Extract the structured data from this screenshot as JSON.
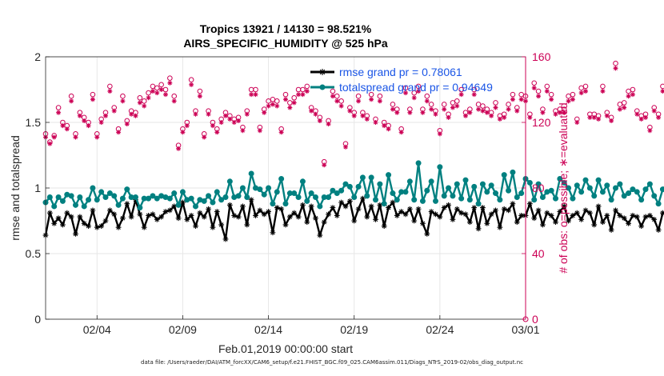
{
  "chart_data": {
    "type": "line",
    "title": "Tropics 13921 / 14130 = 98.521%",
    "subtitle": "AIRS_SPECIFIC_HUMIDITY @ 525 hPa",
    "xlabel": "Feb.01,2019 00:00:00 start",
    "ylabel": "rmse and totalspread",
    "y2label": "# of obs: o=possible; ∗=evaluated",
    "xlim": [
      0,
      28
    ],
    "ylim": [
      0,
      2
    ],
    "y2lim": [
      0,
      160
    ],
    "x_ticks": [
      {
        "value": 3,
        "label": "02/04"
      },
      {
        "value": 8,
        "label": "02/09"
      },
      {
        "value": 13,
        "label": "02/14"
      },
      {
        "value": 18,
        "label": "02/19"
      },
      {
        "value": 23,
        "label": "02/24"
      },
      {
        "value": 28,
        "label": "03/01"
      }
    ],
    "y_ticks": [
      {
        "value": 0,
        "label": "0"
      },
      {
        "value": 0.5,
        "label": "0.5"
      },
      {
        "value": 1,
        "label": "1"
      },
      {
        "value": 1.5,
        "label": "1.5"
      },
      {
        "value": 2,
        "label": "2"
      }
    ],
    "y2_ticks": [
      {
        "value": 0,
        "label": "0"
      },
      {
        "value": 40,
        "label": "40"
      },
      {
        "value": 80,
        "label": "80"
      },
      {
        "value": 120,
        "label": "120"
      },
      {
        "value": 160,
        "label": "160"
      }
    ],
    "legend": [
      {
        "label": "rmse grand pr = 0.78061",
        "series": "rmse"
      },
      {
        "label": "totalspread grand pr = 0.94649",
        "series": "totalspread"
      }
    ],
    "legend_position": "top-right",
    "x_step": 0.25,
    "series": [
      {
        "name": "rmse",
        "axis": "left",
        "color": "#000000",
        "values": [
          0.64,
          0.81,
          0.73,
          0.77,
          0.72,
          0.81,
          0.78,
          0.65,
          0.78,
          0.73,
          0.71,
          0.83,
          0.7,
          0.71,
          0.75,
          0.83,
          0.8,
          0.7,
          0.77,
          0.88,
          0.78,
          0.91,
          0.8,
          0.7,
          0.79,
          0.8,
          0.76,
          0.78,
          0.82,
          0.83,
          0.86,
          0.77,
          0.89,
          0.76,
          0.79,
          0.71,
          0.81,
          0.78,
          0.84,
          0.7,
          0.82,
          0.72,
          0.61,
          0.87,
          0.79,
          0.78,
          0.86,
          0.72,
          0.91,
          0.79,
          0.83,
          0.8,
          0.82,
          0.66,
          0.85,
          0.84,
          0.72,
          0.78,
          0.81,
          0.78,
          0.87,
          0.74,
          0.86,
          0.77,
          0.64,
          0.74,
          0.8,
          0.85,
          0.79,
          0.89,
          0.86,
          0.9,
          0.75,
          0.84,
          0.92,
          0.78,
          0.86,
          0.76,
          0.87,
          0.71,
          0.85,
          0.89,
          0.79,
          0.82,
          0.8,
          0.84,
          0.75,
          0.84,
          0.73,
          0.65,
          0.82,
          0.8,
          0.78,
          0.85,
          0.87,
          0.76,
          0.84,
          0.81,
          0.8,
          0.74,
          0.85,
          0.69,
          0.85,
          0.73,
          0.8,
          0.83,
          0.7,
          0.84,
          0.83,
          0.88,
          0.74,
          0.79,
          0.79,
          0.88,
          0.77,
          0.83,
          0.72,
          0.81,
          0.79,
          0.74,
          0.82,
          0.86,
          0.75,
          0.79,
          0.81,
          0.76,
          0.83,
          0.81,
          0.72,
          0.86,
          0.74,
          0.79,
          0.68,
          0.83,
          0.79,
          0.77,
          0.73,
          0.79,
          0.78,
          0.71,
          0.78,
          0.79,
          0.76,
          0.68,
          0.81,
          0.79,
          0.74,
          0.77,
          0.79,
          0.73,
          0.74,
          0.65,
          0.83,
          0.73,
          0.71,
          0.75,
          0.66,
          0.81,
          0.74,
          0.67,
          0.76,
          0.61,
          0.78,
          0.71
        ]
      },
      {
        "name": "totalspread",
        "axis": "left",
        "color": "#008080",
        "values": [
          0.89,
          0.93,
          0.86,
          0.93,
          0.9,
          0.95,
          0.94,
          0.87,
          0.93,
          0.86,
          0.91,
          1.0,
          0.91,
          0.97,
          0.93,
          0.96,
          0.94,
          0.87,
          0.92,
          0.99,
          0.93,
          0.93,
          0.85,
          0.92,
          0.92,
          0.94,
          0.92,
          0.94,
          0.93,
          0.92,
          0.96,
          0.87,
          0.97,
          0.91,
          0.92,
          0.86,
          0.91,
          0.9,
          0.94,
          0.89,
          0.97,
          0.91,
          0.93,
          1.05,
          0.93,
          0.94,
          1.0,
          0.93,
          1.11,
          1.0,
          0.99,
          0.95,
          1.0,
          0.88,
          0.97,
          1.07,
          0.88,
          0.96,
          0.96,
          0.93,
          1.05,
          0.9,
          0.96,
          0.93,
          0.86,
          0.93,
          0.93,
          0.98,
          0.96,
          0.98,
          1.03,
          1.01,
          0.93,
          1.01,
          1.08,
          0.94,
          1.08,
          0.91,
          1.03,
          0.88,
          1.1,
          0.96,
          0.91,
          0.97,
          0.97,
          1.05,
          0.91,
          1.19,
          0.9,
          0.98,
          1.05,
          0.9,
          1.16,
          0.94,
          1.0,
          0.94,
          1.03,
          0.92,
          1.06,
          0.91,
          1.01,
          0.88,
          1.03,
          0.97,
          1.02,
          0.96,
          0.91,
          1.1,
          0.98,
          1.12,
          0.93,
          0.96,
          1.07,
          1.04,
          0.91,
          1.03,
          0.93,
          0.97,
          0.98,
          0.92,
          1.07,
          1.04,
          1.0,
          0.92,
          1.02,
          0.97,
          1.06,
          1.0,
          0.94,
          1.06,
          0.97,
          1.02,
          0.91,
          1.0,
          1.03,
          0.94,
          0.96,
          0.99,
          0.97,
          0.91,
          0.99,
          1.03,
          0.94,
          0.88,
          0.99,
          1.03,
          0.94,
          0.96,
          0.97,
          0.89,
          1.01,
          0.95,
          0.84,
          0.95,
          0.88,
          0.99,
          0.93,
          0.85,
          0.95,
          0.86,
          0.97,
          0.86
        ]
      },
      {
        "name": "possible",
        "axis": "right",
        "color": "#cc0055",
        "marker": "o",
        "values": [
          113,
          108,
          112,
          129,
          120,
          118,
          136,
          113,
          126,
          123,
          120,
          137,
          113,
          122,
          126,
          142,
          129,
          116,
          136,
          121,
          127,
          126,
          135,
          133,
          138,
          142,
          141,
          143,
          140,
          147,
          136,
          106,
          116,
          120,
          146,
          127,
          139,
          113,
          127,
          120,
          116,
          122,
          126,
          124,
          122,
          123,
          117,
          127,
          140,
          140,
          117,
          128,
          133,
          134,
          133,
          116,
          137,
          132,
          135,
          140,
          140,
          142,
          129,
          127,
          123,
          96,
          121,
          139,
          136,
          133,
          107,
          129,
          126,
          136,
          126,
          124,
          137,
          122,
          136,
          120,
          118,
          131,
          128,
          116,
          141,
          128,
          138,
          142,
          128,
          136,
          131,
          127,
          115,
          131,
          125,
          132,
          133,
          140,
          126,
          128,
          140,
          131,
          130,
          128,
          126,
          132,
          124,
          125,
          131,
          137,
          129,
          137,
          136,
          125,
          144,
          139,
          128,
          142,
          137,
          127,
          128,
          128,
          136,
          137,
          122,
          141,
          142,
          125,
          125,
          124,
          142,
          126,
          123,
          156,
          131,
          132,
          139,
          140,
          127,
          124,
          125,
          117,
          129,
          125,
          142,
          125,
          122,
          134,
          138,
          147,
          134,
          128,
          117,
          127,
          141,
          120,
          126,
          114,
          113,
          131,
          129,
          124,
          119,
          115,
          117,
          121
        ]
      },
      {
        "name": "evaluated",
        "axis": "right",
        "color": "#cc0055",
        "marker": "*",
        "values": [
          111,
          107,
          111,
          126,
          118,
          116,
          133,
          111,
          124,
          121,
          118,
          134,
          111,
          120,
          124,
          139,
          127,
          114,
          133,
          119,
          125,
          124,
          132,
          130,
          135,
          139,
          138,
          140,
          137,
          144,
          133,
          104,
          114,
          118,
          143,
          125,
          136,
          111,
          125,
          118,
          114,
          120,
          124,
          122,
          120,
          121,
          115,
          125,
          137,
          137,
          115,
          126,
          130,
          131,
          130,
          114,
          134,
          129,
          132,
          137,
          137,
          139,
          127,
          125,
          121,
          94,
          119,
          136,
          133,
          130,
          105,
          127,
          124,
          133,
          124,
          122,
          134,
          120,
          133,
          118,
          116,
          128,
          126,
          114,
          138,
          126,
          135,
          139,
          126,
          133,
          128,
          125,
          113,
          128,
          123,
          129,
          130,
          137,
          124,
          126,
          137,
          128,
          127,
          126,
          124,
          129,
          122,
          123,
          128,
          134,
          127,
          134,
          133,
          123,
          141,
          136,
          126,
          139,
          134,
          125,
          126,
          126,
          133,
          134,
          120,
          138,
          139,
          123,
          123,
          122,
          139,
          124,
          121,
          153,
          128,
          129,
          136,
          137,
          125,
          122,
          123,
          115,
          127,
          123,
          139,
          123,
          120,
          131,
          135,
          144,
          131,
          126,
          115,
          125,
          138,
          118,
          124,
          112,
          111,
          128,
          127,
          122,
          117,
          113,
          115,
          119
        ]
      }
    ]
  },
  "footer": {
    "data_file": "data file: /Users/raeder/DAI/ATM_forcXX/CAM6_setup/f.e21.FHIST_BGC.f09_025.CAM6assim.011/Diags_NTrS_2019-02/obs_diag_output.nc"
  },
  "colors": {
    "rmse": "#000000",
    "totalspread": "#008080",
    "obs": "#cc0055",
    "legend_text": "#1a55e6",
    "grid": "#e6e6e6"
  }
}
